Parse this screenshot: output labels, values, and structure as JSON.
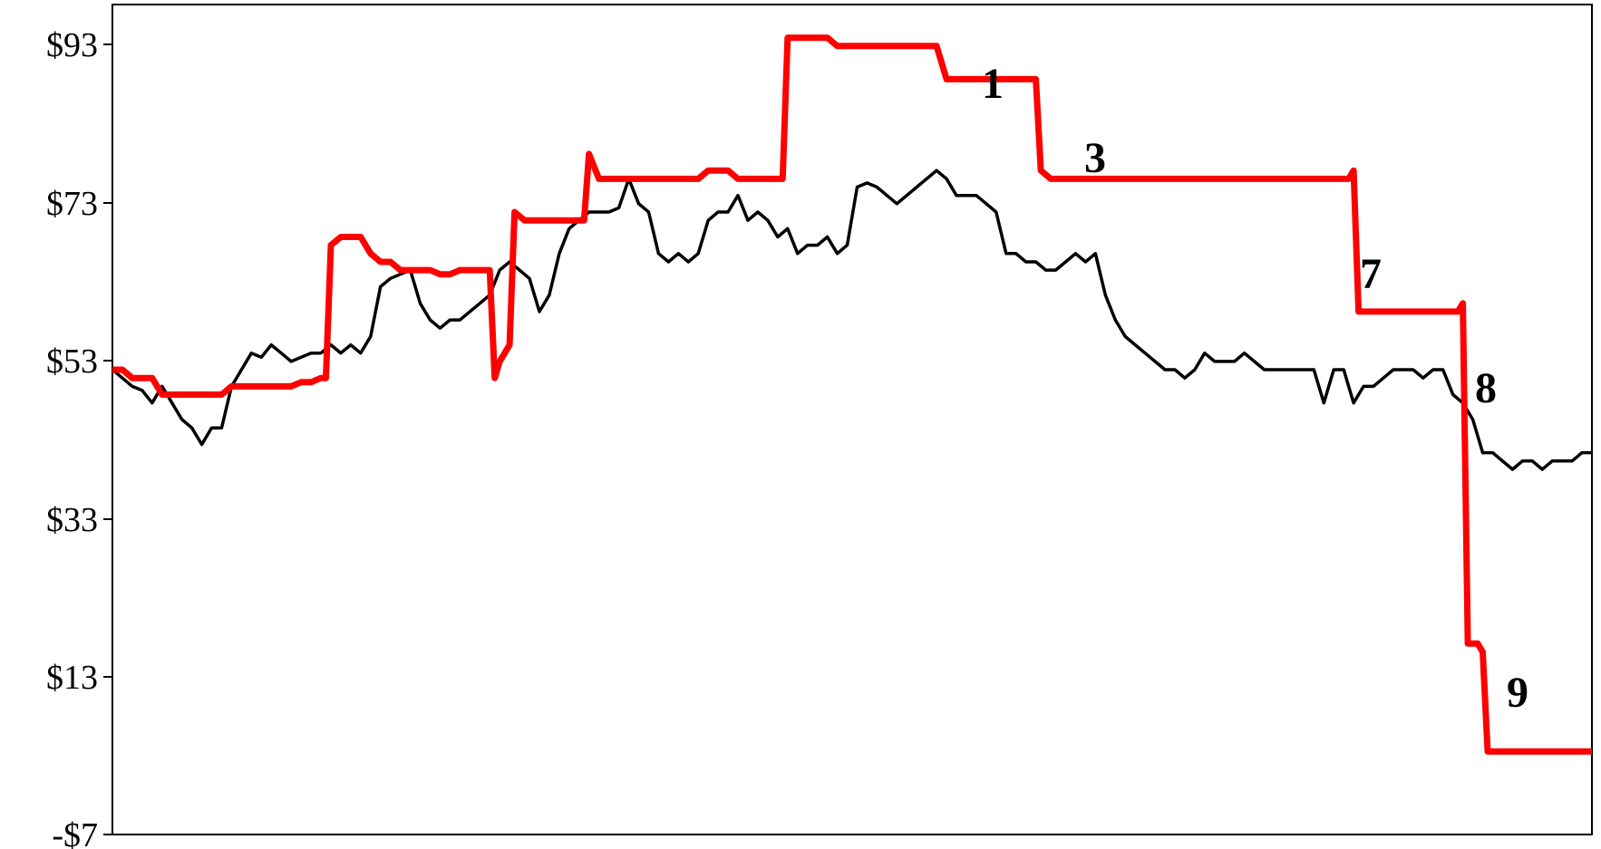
{
  "chart_data": {
    "type": "line",
    "title": "",
    "xlabel": "",
    "ylabel": "",
    "ylim": [
      -7,
      93
    ],
    "yticks": [
      -7,
      13,
      33,
      53,
      73,
      93
    ],
    "ytick_labels": [
      "-$7",
      "$13",
      "$33",
      "$53",
      "$73",
      "$93"
    ],
    "grid": false,
    "legend": "none",
    "series": [
      {
        "color": "#000000",
        "style": "thin",
        "points": [
          [
            0,
            49
          ],
          [
            2,
            48
          ],
          [
            4,
            47
          ],
          [
            6,
            46.5
          ],
          [
            8,
            45
          ],
          [
            10,
            47
          ],
          [
            12,
            45
          ],
          [
            14,
            43
          ],
          [
            16,
            42
          ],
          [
            18,
            40
          ],
          [
            20,
            42
          ],
          [
            22,
            42
          ],
          [
            24,
            47
          ],
          [
            26,
            49
          ],
          [
            28,
            51
          ],
          [
            30,
            50.5
          ],
          [
            32,
            52
          ],
          [
            34,
            51
          ],
          [
            36,
            50
          ],
          [
            38,
            50.5
          ],
          [
            40,
            51
          ],
          [
            42,
            51
          ],
          [
            44,
            52
          ],
          [
            46,
            51
          ],
          [
            48,
            52
          ],
          [
            50,
            51
          ],
          [
            52,
            53
          ],
          [
            54,
            59
          ],
          [
            56,
            60
          ],
          [
            58,
            60.5
          ],
          [
            60,
            61
          ],
          [
            62,
            57
          ],
          [
            64,
            55
          ],
          [
            66,
            54
          ],
          [
            68,
            55
          ],
          [
            70,
            55
          ],
          [
            72,
            56
          ],
          [
            74,
            57
          ],
          [
            76,
            58
          ],
          [
            78,
            61
          ],
          [
            80,
            62
          ],
          [
            82,
            61
          ],
          [
            84,
            60
          ],
          [
            86,
            56
          ],
          [
            88,
            58
          ],
          [
            90,
            63
          ],
          [
            92,
            66
          ],
          [
            94,
            67
          ],
          [
            96,
            68
          ],
          [
            98,
            68
          ],
          [
            100,
            68
          ],
          [
            102,
            68.5
          ],
          [
            104,
            72
          ],
          [
            106,
            69
          ],
          [
            108,
            68
          ],
          [
            110,
            63
          ],
          [
            112,
            62
          ],
          [
            114,
            63
          ],
          [
            116,
            62
          ],
          [
            118,
            63
          ],
          [
            120,
            67
          ],
          [
            122,
            68
          ],
          [
            124,
            68
          ],
          [
            126,
            70
          ],
          [
            128,
            67
          ],
          [
            130,
            68
          ],
          [
            132,
            67
          ],
          [
            134,
            65
          ],
          [
            136,
            66
          ],
          [
            138,
            63
          ],
          [
            140,
            64
          ],
          [
            142,
            64
          ],
          [
            144,
            65
          ],
          [
            146,
            63
          ],
          [
            148,
            64
          ],
          [
            150,
            71
          ],
          [
            152,
            71.5
          ],
          [
            154,
            71
          ],
          [
            156,
            70
          ],
          [
            158,
            69
          ],
          [
            160,
            70
          ],
          [
            162,
            71
          ],
          [
            164,
            72
          ],
          [
            166,
            73
          ],
          [
            168,
            72
          ],
          [
            170,
            70
          ],
          [
            172,
            70
          ],
          [
            174,
            70
          ],
          [
            176,
            69
          ],
          [
            178,
            68
          ],
          [
            180,
            63
          ],
          [
            182,
            63
          ],
          [
            184,
            62
          ],
          [
            186,
            62
          ],
          [
            188,
            61
          ],
          [
            190,
            61
          ],
          [
            192,
            62
          ],
          [
            194,
            63
          ],
          [
            196,
            62
          ],
          [
            198,
            63
          ],
          [
            200,
            58
          ],
          [
            202,
            55
          ],
          [
            204,
            53
          ],
          [
            206,
            52
          ],
          [
            208,
            51
          ],
          [
            210,
            50
          ],
          [
            212,
            49
          ],
          [
            214,
            49
          ],
          [
            216,
            48
          ],
          [
            218,
            49
          ],
          [
            220,
            51
          ],
          [
            222,
            50
          ],
          [
            224,
            50
          ],
          [
            226,
            50
          ],
          [
            228,
            51
          ],
          [
            230,
            50
          ],
          [
            232,
            49
          ],
          [
            234,
            49
          ],
          [
            236,
            49
          ],
          [
            238,
            49
          ],
          [
            240,
            49
          ],
          [
            242,
            49
          ],
          [
            244,
            45
          ],
          [
            246,
            49
          ],
          [
            248,
            49
          ],
          [
            250,
            45
          ],
          [
            252,
            47
          ],
          [
            254,
            47
          ],
          [
            256,
            48
          ],
          [
            258,
            49
          ],
          [
            260,
            49
          ],
          [
            262,
            49
          ],
          [
            264,
            48
          ],
          [
            266,
            49
          ],
          [
            268,
            49
          ],
          [
            270,
            46
          ],
          [
            272,
            45
          ],
          [
            274,
            43
          ],
          [
            276,
            39
          ],
          [
            278,
            39
          ],
          [
            280,
            38
          ],
          [
            282,
            37
          ],
          [
            284,
            38
          ],
          [
            286,
            38
          ],
          [
            288,
            37
          ],
          [
            290,
            38
          ],
          [
            292,
            38
          ],
          [
            294,
            38
          ],
          [
            296,
            39
          ],
          [
            298,
            39
          ]
        ]
      },
      {
        "color": "#ff0000",
        "style": "thick",
        "points": [
          [
            0,
            49
          ],
          [
            2,
            49
          ],
          [
            4,
            48
          ],
          [
            6,
            48
          ],
          [
            8,
            48
          ],
          [
            10,
            46
          ],
          [
            12,
            46
          ],
          [
            14,
            46
          ],
          [
            16,
            46
          ],
          [
            18,
            46
          ],
          [
            20,
            46
          ],
          [
            22,
            46
          ],
          [
            24,
            47
          ],
          [
            26,
            47
          ],
          [
            28,
            47
          ],
          [
            30,
            47
          ],
          [
            32,
            47
          ],
          [
            34,
            47
          ],
          [
            36,
            47
          ],
          [
            38,
            47.5
          ],
          [
            40,
            47.5
          ],
          [
            42,
            48
          ],
          [
            43,
            48
          ],
          [
            44,
            64
          ],
          [
            46,
            65
          ],
          [
            48,
            65
          ],
          [
            50,
            65
          ],
          [
            52,
            63
          ],
          [
            54,
            62
          ],
          [
            56,
            62
          ],
          [
            58,
            61
          ],
          [
            60,
            61
          ],
          [
            62,
            61
          ],
          [
            64,
            61
          ],
          [
            66,
            60.5
          ],
          [
            68,
            60.5
          ],
          [
            70,
            61
          ],
          [
            72,
            61
          ],
          [
            74,
            61
          ],
          [
            76,
            61
          ],
          [
            77,
            48
          ],
          [
            78,
            50
          ],
          [
            80,
            52
          ],
          [
            81,
            68
          ],
          [
            83,
            67
          ],
          [
            85,
            67
          ],
          [
            87,
            67
          ],
          [
            89,
            67
          ],
          [
            91,
            67
          ],
          [
            93,
            67
          ],
          [
            95,
            67
          ],
          [
            96,
            75
          ],
          [
            98,
            72
          ],
          [
            100,
            72
          ],
          [
            102,
            72
          ],
          [
            104,
            72
          ],
          [
            106,
            72
          ],
          [
            108,
            72
          ],
          [
            110,
            72
          ],
          [
            112,
            72
          ],
          [
            114,
            72
          ],
          [
            116,
            72
          ],
          [
            118,
            72
          ],
          [
            120,
            73
          ],
          [
            122,
            73
          ],
          [
            124,
            73
          ],
          [
            126,
            72
          ],
          [
            128,
            72
          ],
          [
            130,
            72
          ],
          [
            132,
            72
          ],
          [
            134,
            72
          ],
          [
            135,
            72
          ],
          [
            136,
            89
          ],
          [
            138,
            89
          ],
          [
            140,
            89
          ],
          [
            142,
            89
          ],
          [
            144,
            89
          ],
          [
            146,
            88
          ],
          [
            148,
            88
          ],
          [
            150,
            88
          ],
          [
            152,
            88
          ],
          [
            154,
            88
          ],
          [
            156,
            88
          ],
          [
            158,
            88
          ],
          [
            160,
            88
          ],
          [
            162,
            88
          ],
          [
            164,
            88
          ],
          [
            166,
            88
          ],
          [
            168,
            84
          ],
          [
            170,
            84
          ],
          [
            172,
            84
          ],
          [
            174,
            84
          ],
          [
            176,
            84
          ],
          [
            178,
            84
          ],
          [
            180,
            84
          ],
          [
            182,
            84
          ],
          [
            184,
            84
          ],
          [
            186,
            84
          ],
          [
            187,
            73
          ],
          [
            189,
            72
          ],
          [
            191,
            72
          ],
          [
            193,
            72
          ],
          [
            195,
            72
          ],
          [
            197,
            72
          ],
          [
            199,
            72
          ],
          [
            201,
            72
          ],
          [
            203,
            72
          ],
          [
            205,
            72
          ],
          [
            207,
            72
          ],
          [
            209,
            72
          ],
          [
            211,
            72
          ],
          [
            213,
            72
          ],
          [
            215,
            72
          ],
          [
            217,
            72
          ],
          [
            219,
            72
          ],
          [
            221,
            72
          ],
          [
            223,
            72
          ],
          [
            225,
            72
          ],
          [
            227,
            72
          ],
          [
            229,
            72
          ],
          [
            231,
            72
          ],
          [
            233,
            72
          ],
          [
            235,
            72
          ],
          [
            237,
            72
          ],
          [
            239,
            72
          ],
          [
            241,
            72
          ],
          [
            243,
            72
          ],
          [
            245,
            72
          ],
          [
            247,
            72
          ],
          [
            249,
            72
          ],
          [
            250,
            73
          ],
          [
            251,
            56
          ],
          [
            253,
            56
          ],
          [
            255,
            56
          ],
          [
            257,
            56
          ],
          [
            259,
            56
          ],
          [
            261,
            56
          ],
          [
            263,
            56
          ],
          [
            265,
            56
          ],
          [
            267,
            56
          ],
          [
            269,
            56
          ],
          [
            271,
            56
          ],
          [
            272,
            57
          ],
          [
            273,
            16
          ],
          [
            275,
            16
          ],
          [
            276,
            15
          ],
          [
            277,
            3
          ],
          [
            279,
            3
          ],
          [
            281,
            3
          ],
          [
            283,
            3
          ],
          [
            285,
            3
          ],
          [
            287,
            3
          ],
          [
            289,
            3
          ],
          [
            291,
            3
          ],
          [
            293,
            3
          ],
          [
            295,
            3
          ],
          [
            297,
            3
          ],
          [
            298,
            3
          ]
        ]
      }
    ],
    "annotations": [
      "1",
      "3",
      "7",
      "8",
      "9"
    ]
  }
}
